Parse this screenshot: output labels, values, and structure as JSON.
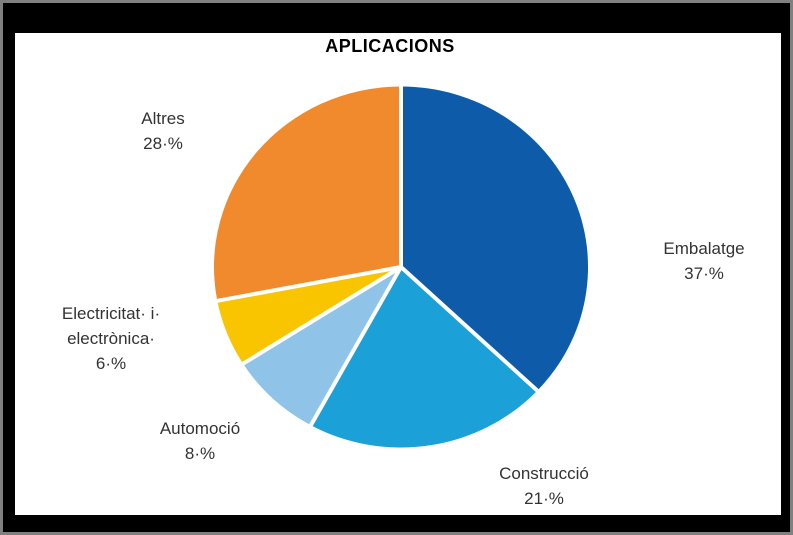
{
  "window": {
    "outer_border_color": "#808080",
    "frame_color": "#000000",
    "canvas_color": "#ffffff"
  },
  "title": {
    "text": "APLICACIONS"
  },
  "chart_data": {
    "type": "pie",
    "title": "APLICACIONS",
    "start_angle_deg": 0,
    "direction": "clockwise",
    "legend": "none",
    "label_style": "outside-callouts",
    "separator_color": "#ffffff",
    "slices": [
      {
        "id": "embalatge",
        "label": "Embalatge",
        "value": 37,
        "color": "#0E5CA9"
      },
      {
        "id": "construccio",
        "label": "Construcció",
        "value": 21,
        "color": "#1BA0D8"
      },
      {
        "id": "automocio",
        "label": "Automoció",
        "value": 8,
        "color": "#8FC3E8"
      },
      {
        "id": "electricitat",
        "label": "Electricitat i electrònica",
        "value": 6,
        "color": "#F9C400"
      },
      {
        "id": "altres",
        "label": "Altres",
        "value": 28,
        "color": "#F08A2C"
      }
    ]
  },
  "callouts": {
    "altres": {
      "lines": [
        "Altres",
        "28·%"
      ]
    },
    "embalatge": {
      "lines": [
        "Embalatge",
        "37·%"
      ]
    },
    "electricitat": {
      "lines": [
        "Electricitat· i·",
        "electrònica·",
        "6·%"
      ]
    },
    "automocio": {
      "lines": [
        "Automoció",
        "8·%"
      ]
    },
    "construccio": {
      "lines": [
        "Construcció",
        "21·%"
      ]
    }
  }
}
